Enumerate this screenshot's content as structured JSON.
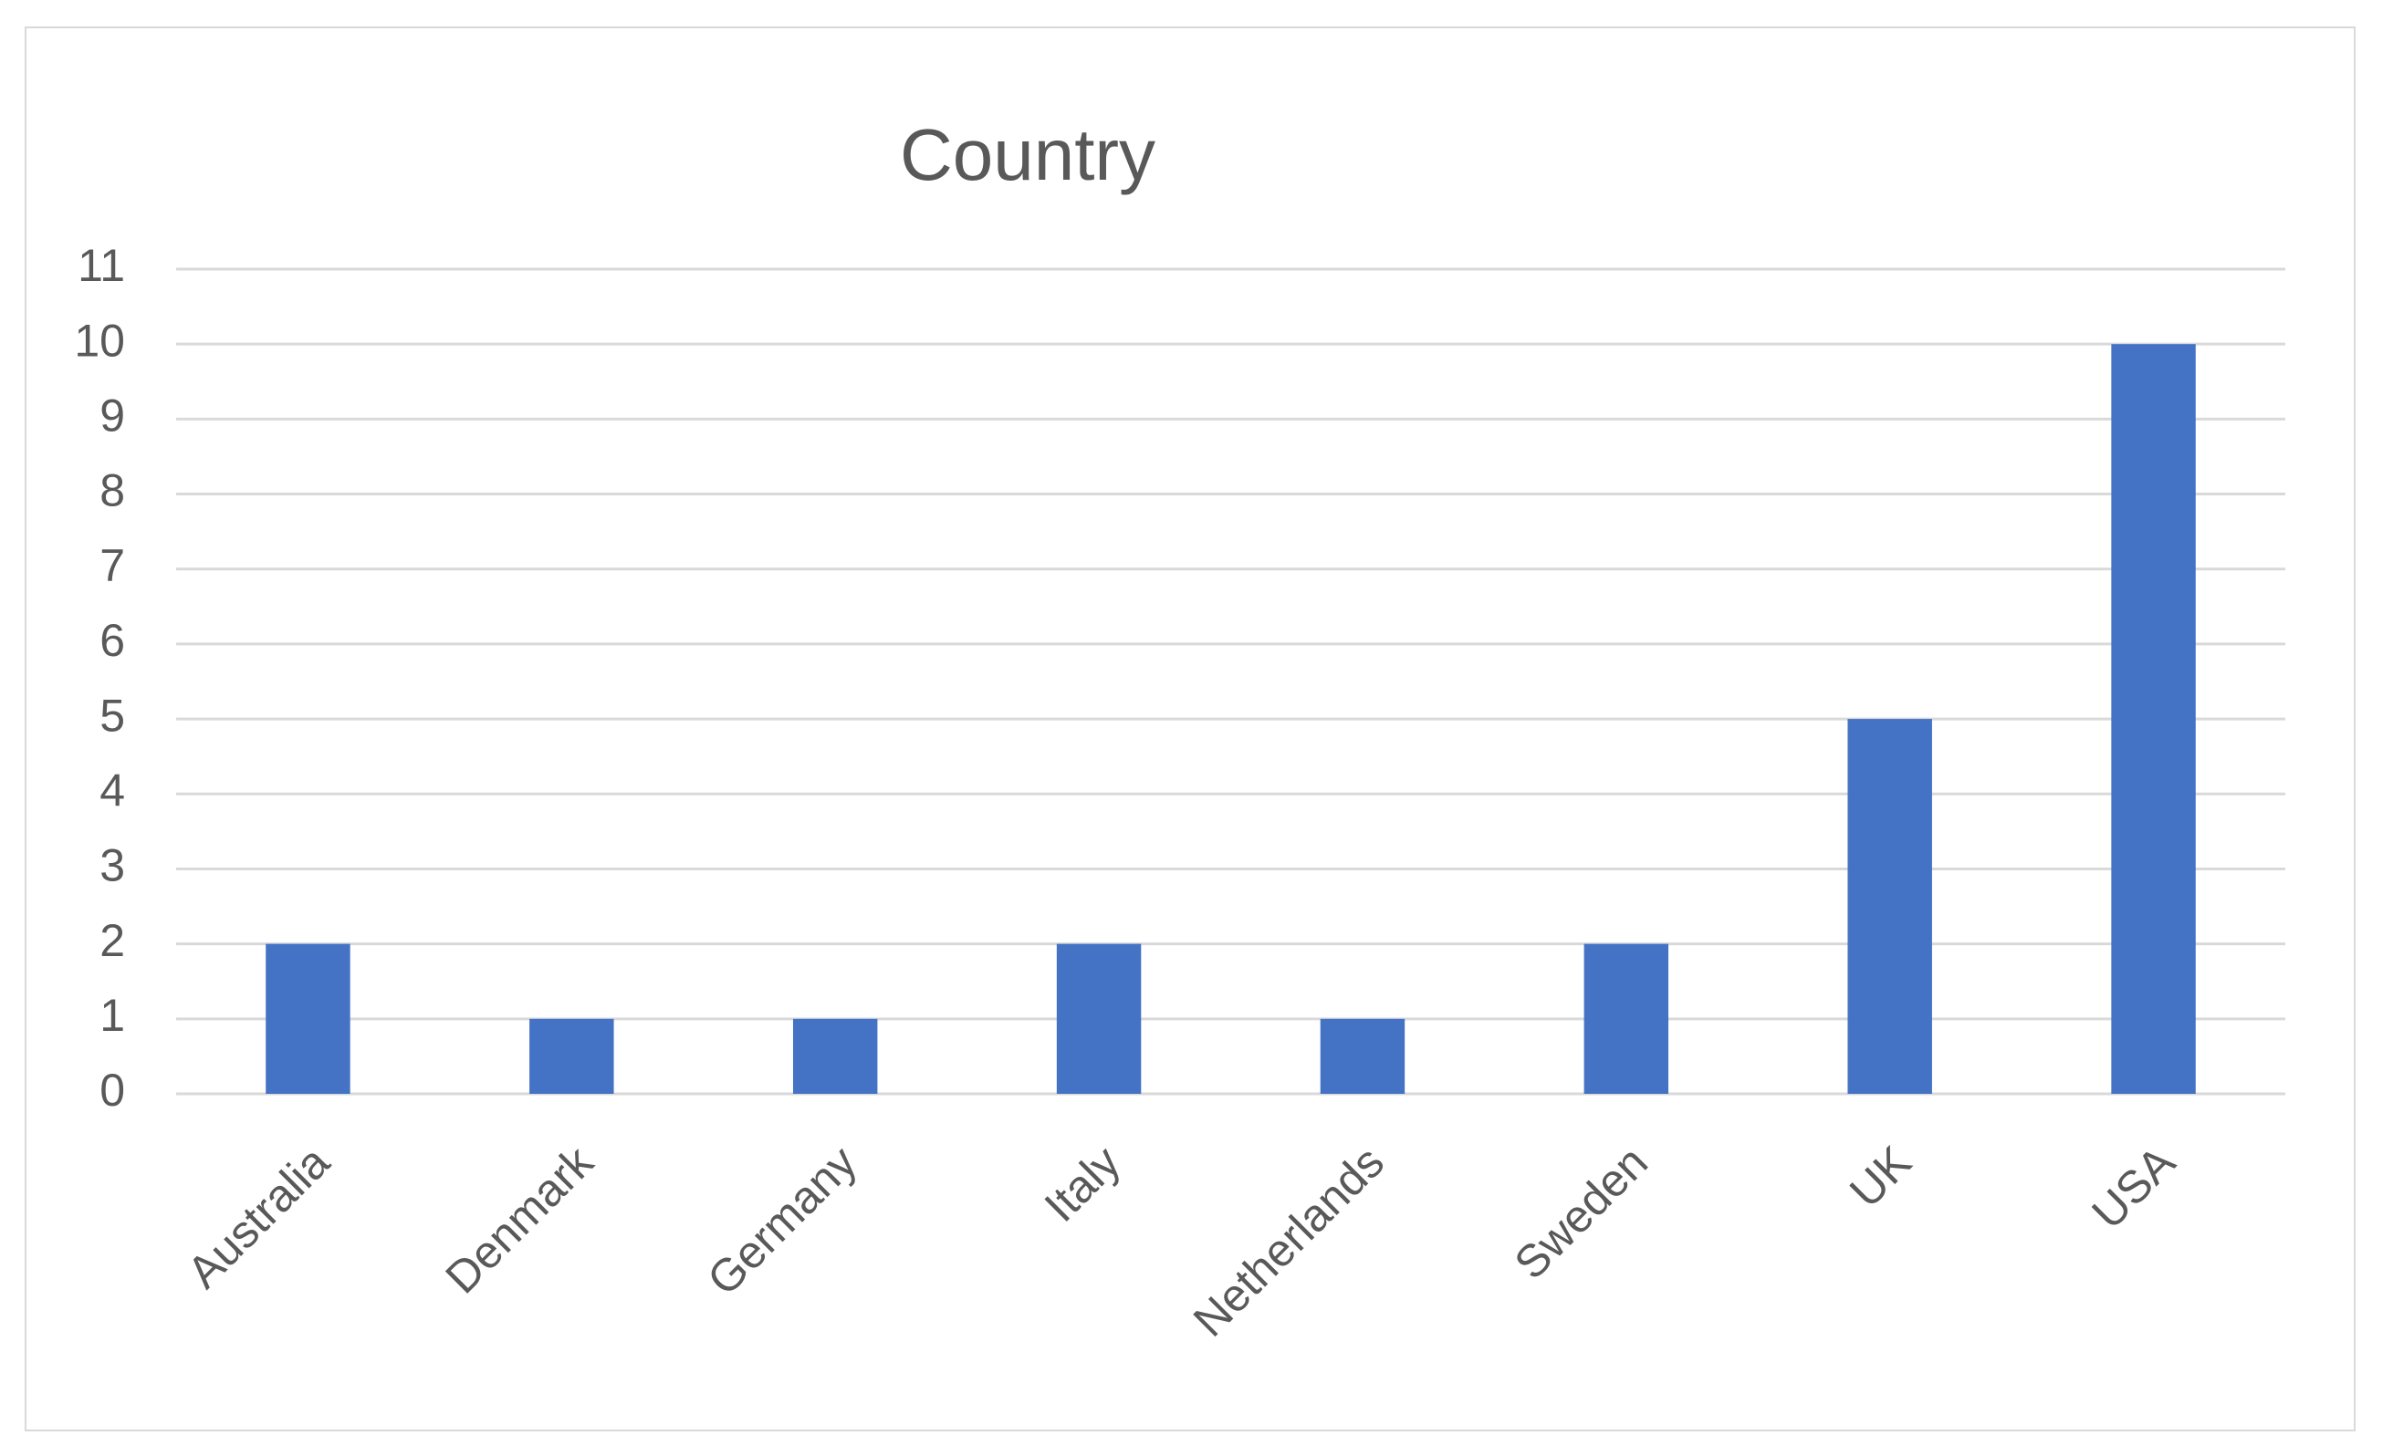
{
  "chart_data": {
    "type": "bar",
    "title": "Country",
    "categories": [
      "Australia",
      "Denmark",
      "Germany",
      "Italy",
      "Netherlands",
      "Sweden",
      "UK",
      "USA"
    ],
    "values": [
      2,
      1,
      1,
      2,
      1,
      2,
      5,
      10
    ],
    "color": "#4472c4",
    "ylim": [
      0,
      11
    ],
    "yticks": [
      0,
      1,
      2,
      3,
      4,
      5,
      6,
      7,
      8,
      9,
      10,
      11
    ],
    "grid": true
  }
}
